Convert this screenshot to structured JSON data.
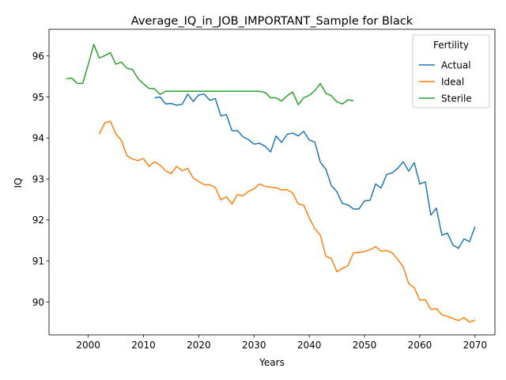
{
  "chart_data": {
    "type": "line",
    "title": "Average_IQ_in_JOB_IMPORTANT_Sample for Black",
    "xlabel": "Years",
    "ylabel": "IQ",
    "xlim": [
      1992.9,
      2073.6
    ],
    "ylim": [
      89.2,
      96.65
    ],
    "xticks": [
      2000,
      2010,
      2020,
      2030,
      2040,
      2050,
      2060,
      2070
    ],
    "yticks": [
      90,
      91,
      92,
      93,
      94,
      95,
      96
    ],
    "grid": false,
    "legend": {
      "title": "Fertility",
      "placement": "top-right"
    },
    "series": [
      {
        "name": "Actual",
        "color": "#1f77b4",
        "points": [
          [
            2012,
            94.98
          ],
          [
            2013,
            95.0
          ],
          [
            2014,
            94.83
          ],
          [
            2015,
            94.84
          ],
          [
            2016,
            94.8
          ],
          [
            2017,
            94.82
          ],
          [
            2018,
            95.07
          ],
          [
            2019,
            94.89
          ],
          [
            2020,
            95.05
          ],
          [
            2021,
            95.07
          ],
          [
            2022,
            94.92
          ],
          [
            2023,
            94.96
          ],
          [
            2024,
            94.54
          ],
          [
            2025,
            94.57
          ],
          [
            2026,
            94.18
          ],
          [
            2027,
            94.18
          ],
          [
            2028,
            94.03
          ],
          [
            2029,
            93.96
          ],
          [
            2030,
            93.85
          ],
          [
            2031,
            93.87
          ],
          [
            2032,
            93.8
          ],
          [
            2033,
            93.66
          ],
          [
            2034,
            94.05
          ],
          [
            2035,
            93.89
          ],
          [
            2036,
            94.09
          ],
          [
            2037,
            94.12
          ],
          [
            2038,
            94.05
          ],
          [
            2039,
            94.16
          ],
          [
            2040,
            93.95
          ],
          [
            2041,
            93.9
          ],
          [
            2042,
            93.41
          ],
          [
            2043,
            93.24
          ],
          [
            2044,
            92.84
          ],
          [
            2045,
            92.69
          ],
          [
            2046,
            92.4
          ],
          [
            2047,
            92.37
          ],
          [
            2048,
            92.27
          ],
          [
            2049,
            92.27
          ],
          [
            2050,
            92.47
          ],
          [
            2051,
            92.48
          ],
          [
            2052,
            92.88
          ],
          [
            2053,
            92.78
          ],
          [
            2054,
            93.11
          ],
          [
            2055,
            93.15
          ],
          [
            2056,
            93.26
          ],
          [
            2057,
            93.42
          ],
          [
            2058,
            93.19
          ],
          [
            2059,
            93.4
          ],
          [
            2060,
            92.88
          ],
          [
            2061,
            92.93
          ],
          [
            2062,
            92.12
          ],
          [
            2063,
            92.29
          ],
          [
            2064,
            91.63
          ],
          [
            2065,
            91.68
          ],
          [
            2066,
            91.39
          ],
          [
            2067,
            91.31
          ],
          [
            2068,
            91.54
          ],
          [
            2069,
            91.47
          ],
          [
            2070,
            91.84
          ]
        ]
      },
      {
        "name": "Ideal",
        "color": "#ff7f0e",
        "points": [
          [
            2002,
            94.1
          ],
          [
            2003,
            94.37
          ],
          [
            2004,
            94.41
          ],
          [
            2005,
            94.1
          ],
          [
            2006,
            93.94
          ],
          [
            2007,
            93.57
          ],
          [
            2008,
            93.49
          ],
          [
            2009,
            93.45
          ],
          [
            2010,
            93.5
          ],
          [
            2011,
            93.31
          ],
          [
            2012,
            93.42
          ],
          [
            2013,
            93.34
          ],
          [
            2014,
            93.2
          ],
          [
            2015,
            93.13
          ],
          [
            2016,
            93.31
          ],
          [
            2017,
            93.2
          ],
          [
            2018,
            93.26
          ],
          [
            2019,
            93.02
          ],
          [
            2020,
            92.94
          ],
          [
            2021,
            92.86
          ],
          [
            2022,
            92.86
          ],
          [
            2023,
            92.79
          ],
          [
            2024,
            92.49
          ],
          [
            2025,
            92.57
          ],
          [
            2026,
            92.39
          ],
          [
            2027,
            92.62
          ],
          [
            2028,
            92.59
          ],
          [
            2029,
            92.7
          ],
          [
            2030,
            92.76
          ],
          [
            2031,
            92.88
          ],
          [
            2032,
            92.82
          ],
          [
            2033,
            92.8
          ],
          [
            2034,
            92.79
          ],
          [
            2035,
            92.73
          ],
          [
            2036,
            92.74
          ],
          [
            2037,
            92.66
          ],
          [
            2038,
            92.39
          ],
          [
            2039,
            92.36
          ],
          [
            2040,
            92.05
          ],
          [
            2041,
            91.79
          ],
          [
            2042,
            91.63
          ],
          [
            2043,
            91.12
          ],
          [
            2044,
            91.06
          ],
          [
            2045,
            90.74
          ],
          [
            2046,
            90.82
          ],
          [
            2047,
            90.89
          ],
          [
            2048,
            91.2
          ],
          [
            2049,
            91.21
          ],
          [
            2050,
            91.23
          ],
          [
            2051,
            91.28
          ],
          [
            2052,
            91.35
          ],
          [
            2053,
            91.24
          ],
          [
            2054,
            91.26
          ],
          [
            2055,
            91.2
          ],
          [
            2056,
            91.04
          ],
          [
            2057,
            90.86
          ],
          [
            2058,
            90.45
          ],
          [
            2059,
            90.35
          ],
          [
            2060,
            90.05
          ],
          [
            2061,
            90.06
          ],
          [
            2062,
            89.82
          ],
          [
            2063,
            89.84
          ],
          [
            2064,
            89.69
          ],
          [
            2065,
            89.65
          ],
          [
            2066,
            89.6
          ],
          [
            2067,
            89.55
          ],
          [
            2068,
            89.62
          ],
          [
            2069,
            89.51
          ],
          [
            2070,
            89.56
          ]
        ]
      },
      {
        "name": "Sterile",
        "color": "#2ca02c",
        "points": [
          [
            1996,
            95.44
          ],
          [
            1997,
            95.46
          ],
          [
            1998,
            95.33
          ],
          [
            1999,
            95.33
          ],
          [
            2000,
            95.79
          ],
          [
            2001,
            96.28
          ],
          [
            2002,
            95.95
          ],
          [
            2003,
            96.01
          ],
          [
            2004,
            96.08
          ],
          [
            2005,
            95.8
          ],
          [
            2006,
            95.85
          ],
          [
            2007,
            95.7
          ],
          [
            2008,
            95.67
          ],
          [
            2009,
            95.45
          ],
          [
            2010,
            95.32
          ],
          [
            2011,
            95.21
          ],
          [
            2012,
            95.2
          ],
          [
            2013,
            95.06
          ],
          [
            2014,
            95.14
          ],
          [
            2015,
            95.14
          ],
          [
            2016,
            95.14
          ],
          [
            2017,
            95.14
          ],
          [
            2018,
            95.14
          ],
          [
            2019,
            95.14
          ],
          [
            2020,
            95.14
          ],
          [
            2021,
            95.14
          ],
          [
            2022,
            95.14
          ],
          [
            2023,
            95.14
          ],
          [
            2024,
            95.14
          ],
          [
            2025,
            95.14
          ],
          [
            2026,
            95.14
          ],
          [
            2027,
            95.14
          ],
          [
            2028,
            95.14
          ],
          [
            2029,
            95.14
          ],
          [
            2030,
            95.14
          ],
          [
            2031,
            95.14
          ],
          [
            2032,
            95.11
          ],
          [
            2033,
            94.98
          ],
          [
            2034,
            94.98
          ],
          [
            2035,
            94.9
          ],
          [
            2036,
            95.03
          ],
          [
            2037,
            95.12
          ],
          [
            2038,
            94.81
          ],
          [
            2039,
            94.98
          ],
          [
            2040,
            95.04
          ],
          [
            2041,
            95.15
          ],
          [
            2042,
            95.33
          ],
          [
            2043,
            95.09
          ],
          [
            2044,
            95.03
          ],
          [
            2045,
            94.88
          ],
          [
            2046,
            94.83
          ],
          [
            2047,
            94.93
          ],
          [
            2048,
            94.91
          ]
        ]
      }
    ]
  }
}
